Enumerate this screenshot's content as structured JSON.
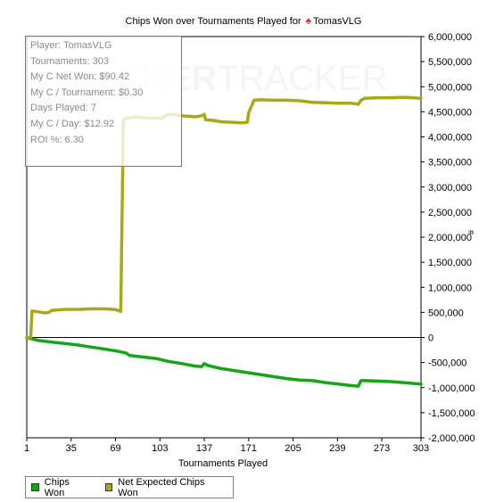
{
  "title": {
    "prefix": "Chips Won over Tournaments Played for",
    "player": "TomasVLG"
  },
  "watermark": {
    "bold": "CKER",
    "light": "TRACKER"
  },
  "stats": [
    "Player: TomasVLG",
    "Tournaments: 303",
    "My C Net Won: $90.42",
    "My C / Tournament: $0.30",
    "Days Played: 7",
    "My C / Day: $12.92",
    "ROI %: 6.30"
  ],
  "colors": {
    "chips_won": "#18a418",
    "net_expected": "#a8a81a",
    "axis": "#000000",
    "grid_vertical": "#ffffff"
  },
  "chart_data": {
    "type": "line",
    "xlabel": "Tournaments Played",
    "ylabel": "#",
    "xlim": [
      1,
      303
    ],
    "ylim": [
      -2000000,
      6000000
    ],
    "x_ticks": [
      1,
      35,
      69,
      103,
      137,
      171,
      205,
      239,
      273,
      303
    ],
    "y_ticks": [
      6000000,
      5500000,
      5000000,
      4500000,
      4000000,
      3500000,
      3000000,
      2500000,
      2000000,
      1500000,
      1000000,
      500000,
      0,
      -500000,
      -1000000,
      -1500000,
      -2000000
    ],
    "y_tick_labels": [
      "6,000,000",
      "5,500,000",
      "5,000,000",
      "4,500,000",
      "4,000,000",
      "3,500,000",
      "3,000,000",
      "2,500,000",
      "2,000,000",
      "1,500,000",
      "1,000,000",
      "500,000",
      "0",
      "-500,000",
      "-1,000,000",
      "-1,500,000",
      "-2,000,000"
    ],
    "legend": {
      "position": "bottom-left"
    },
    "series": [
      {
        "name": "Chips Won",
        "x": [
          1,
          10,
          20,
          30,
          40,
          50,
          60,
          70,
          77,
          80,
          90,
          100,
          110,
          120,
          130,
          135,
          137,
          140,
          150,
          160,
          170,
          180,
          190,
          200,
          210,
          220,
          230,
          240,
          250,
          255,
          257,
          260,
          270,
          280,
          290,
          303
        ],
        "y": [
          0,
          -60000,
          -90000,
          -120000,
          -150000,
          -190000,
          -230000,
          -270000,
          -310000,
          -360000,
          -390000,
          -420000,
          -480000,
          -520000,
          -570000,
          -580000,
          -520000,
          -560000,
          -620000,
          -660000,
          -700000,
          -740000,
          -780000,
          -820000,
          -850000,
          -860000,
          -900000,
          -930000,
          -960000,
          -970000,
          -860000,
          -860000,
          -870000,
          -880000,
          -900000,
          -930000
        ]
      },
      {
        "name": "Net Expected Chips Won",
        "x": [
          1,
          4,
          5,
          10,
          15,
          18,
          20,
          30,
          40,
          50,
          60,
          68,
          71,
          73,
          75,
          77,
          78,
          85,
          95,
          100,
          105,
          108,
          112,
          120,
          130,
          135,
          137,
          138,
          143,
          150,
          160,
          165,
          170,
          171,
          175,
          180,
          190,
          200,
          210,
          220,
          230,
          240,
          250,
          255,
          257,
          260,
          270,
          280,
          290,
          303
        ],
        "y": [
          0,
          0,
          530000,
          510000,
          490000,
          500000,
          540000,
          560000,
          560000,
          570000,
          570000,
          560000,
          540000,
          520000,
          4320000,
          4380000,
          4370000,
          4400000,
          4370000,
          4380000,
          4370000,
          4440000,
          4450000,
          4420000,
          4400000,
          4420000,
          4450000,
          4340000,
          4330000,
          4300000,
          4290000,
          4280000,
          4290000,
          4480000,
          4730000,
          4740000,
          4730000,
          4730000,
          4720000,
          4690000,
          4680000,
          4670000,
          4670000,
          4650000,
          4730000,
          4770000,
          4780000,
          4780000,
          4790000,
          4770000
        ]
      }
    ]
  },
  "legend": {
    "chips_won": "Chips Won",
    "net_expected": "Net Expected Chips Won"
  }
}
